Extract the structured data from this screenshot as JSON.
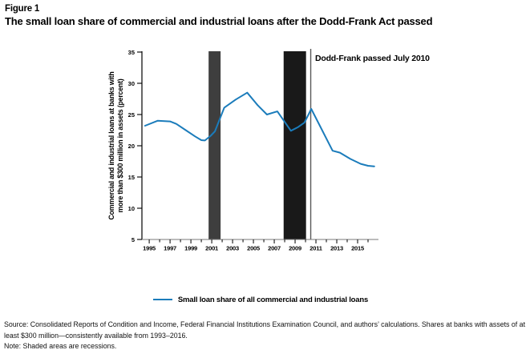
{
  "figure": {
    "label": "Figure 1",
    "title": "The small loan share of commercial and industrial loans after the Dodd-Frank Act passed"
  },
  "chart_data": {
    "type": "line",
    "title": "",
    "xlabel": "",
    "ylabel": "Commercial and industrial loans at banks with more than $300 million in assets (percent)",
    "ylabel_lines": [
      "Commercial and industrial loans at banks with",
      "more than $300 million in assets (percent)"
    ],
    "ylim": [
      5,
      35
    ],
    "yticks": [
      5,
      10,
      15,
      20,
      25,
      30,
      35
    ],
    "xlim": [
      1994.3,
      2017.0
    ],
    "xticks_minor": [
      1995,
      1996,
      1997,
      1998,
      1999,
      2000,
      2001,
      2002,
      2003,
      2004,
      2005,
      2006,
      2007,
      2008,
      2009,
      2010,
      2011,
      2012,
      2013,
      2014,
      2015,
      2016
    ],
    "xticks_labeled": [
      1995,
      1997,
      1999,
      2001,
      2003,
      2005,
      2007,
      2009,
      2011,
      2013,
      2015
    ],
    "grid": false,
    "legend_position": "bottom-center",
    "annotation": {
      "text": "Dodd-Frank passed July 2010",
      "x": 2010.5,
      "line_color": "#5a5a5a"
    },
    "recessions": [
      {
        "from": 2000.7,
        "to": 2001.85,
        "color": "#3e3e3e"
      },
      {
        "from": 2007.9,
        "to": 2010.05,
        "color": "#191919"
      }
    ],
    "series": [
      {
        "name": "Small loan share of all commercial and industrial loans",
        "color": "#1b7cbb",
        "points": [
          [
            1994.6,
            23.2
          ],
          [
            1995.8,
            24.0
          ],
          [
            1997.0,
            23.9
          ],
          [
            1997.6,
            23.5
          ],
          [
            1998.5,
            22.5
          ],
          [
            1999.4,
            21.5
          ],
          [
            2000.0,
            20.9
          ],
          [
            2000.35,
            20.85
          ],
          [
            2000.9,
            21.6
          ],
          [
            2001.3,
            22.3
          ],
          [
            2002.2,
            26.1
          ],
          [
            2003.3,
            27.4
          ],
          [
            2004.4,
            28.5
          ],
          [
            2005.4,
            26.5
          ],
          [
            2006.3,
            25.0
          ],
          [
            2007.3,
            25.5
          ],
          [
            2008.6,
            22.4
          ],
          [
            2009.3,
            23.0
          ],
          [
            2009.9,
            23.7
          ],
          [
            2010.55,
            25.9
          ],
          [
            2012.6,
            19.2
          ],
          [
            2013.3,
            18.9
          ],
          [
            2014.3,
            17.9
          ],
          [
            2015.3,
            17.1
          ],
          [
            2016.0,
            16.8
          ],
          [
            2016.6,
            16.7
          ]
        ]
      }
    ]
  },
  "notes": {
    "source": "Source: Consolidated Reports of Condition and Income, Federal Financial Institutions Examination Council, and authors’ calculations. Shares at banks with assets of at least $300 million—consistently available from 1993–2016.",
    "note": "Note: Shaded areas are recessions."
  }
}
